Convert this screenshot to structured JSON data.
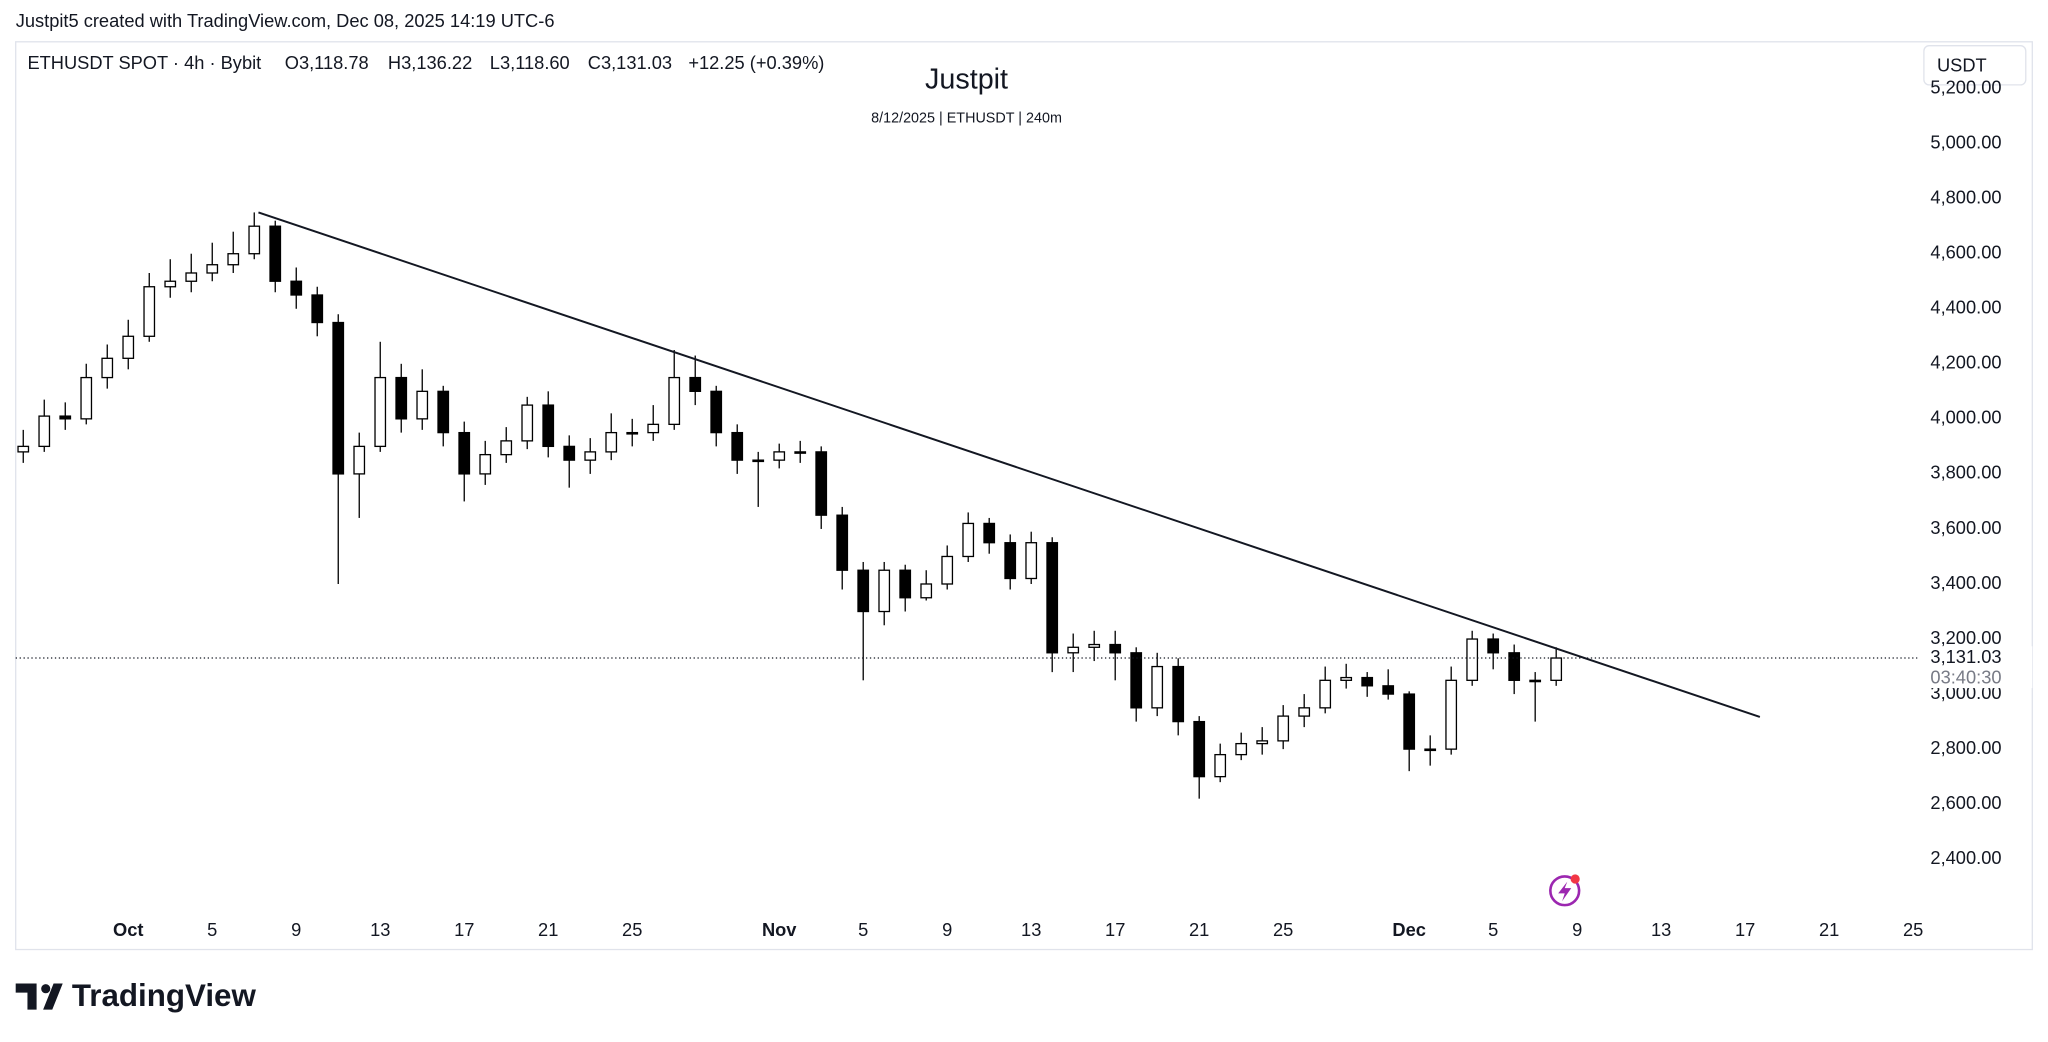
{
  "header": {
    "credit": "Justpit5 created with TradingView.com, Dec 08, 2025 14:19 UTC-6",
    "symbol": "ETHUSDT SPOT · 4h · Bybit",
    "open": "O3,118.78",
    "high": "H3,136.22",
    "low": "L3,118.60",
    "close": "C3,131.03",
    "change": "+12.25 (+0.39%)",
    "currency": "USDT",
    "logo": "TradingView"
  },
  "chart_data": {
    "type": "candlestick",
    "title": "Justpit",
    "subtitle": "8/12/2025 | ETHUSDT | 240m",
    "color": "#000000",
    "x": [
      -5,
      -4,
      -3,
      -2,
      -1,
      0,
      1,
      2,
      3,
      4,
      5,
      6,
      7,
      8,
      9,
      10,
      11,
      12,
      13,
      14,
      15,
      16,
      17,
      18,
      19,
      20,
      21,
      22,
      23,
      24,
      25,
      26,
      27,
      28,
      29,
      30,
      31,
      32,
      33,
      34,
      35,
      36,
      37,
      38,
      39,
      40,
      41,
      42,
      43,
      44,
      45,
      46,
      47,
      48,
      49,
      50,
      51,
      52,
      53,
      54,
      55,
      56,
      57,
      58,
      59,
      60,
      61,
      62,
      63,
      64,
      65,
      66,
      67,
      68
    ],
    "open": [
      3880,
      3900,
      4010,
      4000,
      4150,
      4220,
      4300,
      4480,
      4500,
      4530,
      4560,
      4600,
      4700,
      4500,
      4450,
      4350,
      3800,
      3900,
      4150,
      4000,
      4100,
      3950,
      3800,
      3870,
      3920,
      4050,
      3900,
      3850,
      3880,
      3950,
      3950,
      3980,
      4150,
      4100,
      3950,
      3850,
      3850,
      3880,
      3880,
      3650,
      3450,
      3300,
      3450,
      3350,
      3400,
      3500,
      3620,
      3550,
      3420,
      3550,
      3150,
      3170,
      3180,
      3150,
      2950,
      3100,
      2900,
      2700,
      2780,
      2820,
      2830,
      2920,
      2950,
      3050,
      3060,
      3030,
      3000,
      2800,
      2800,
      3050,
      3200,
      3150,
      3050,
      3050
    ],
    "high": [
      3960,
      4070,
      4060,
      4200,
      4270,
      4360,
      4530,
      4580,
      4600,
      4640,
      4680,
      4750,
      4720,
      4550,
      4480,
      4380,
      3950,
      4280,
      4200,
      4180,
      4120,
      3990,
      3920,
      3970,
      4080,
      4100,
      3940,
      3930,
      4020,
      4000,
      4050,
      4250,
      4230,
      4120,
      3980,
      3880,
      3910,
      3920,
      3900,
      3680,
      3480,
      3480,
      3470,
      3450,
      3540,
      3660,
      3640,
      3580,
      3590,
      3570,
      3220,
      3230,
      3230,
      3170,
      3150,
      3130,
      2920,
      2820,
      2860,
      2880,
      2960,
      3000,
      3100,
      3110,
      3080,
      3090,
      3010,
      2850,
      3100,
      3230,
      3220,
      3180,
      3080,
      3170
    ],
    "low": [
      3840,
      3880,
      3960,
      3980,
      4110,
      4180,
      4280,
      4440,
      4460,
      4500,
      4530,
      4580,
      4460,
      4400,
      4300,
      3400,
      3640,
      3880,
      3950,
      3960,
      3900,
      3700,
      3760,
      3840,
      3890,
      3860,
      3750,
      3800,
      3850,
      3900,
      3920,
      3960,
      4050,
      3900,
      3800,
      3680,
      3820,
      3840,
      3600,
      3380,
      3050,
      3250,
      3300,
      3340,
      3380,
      3480,
      3510,
      3380,
      3400,
      3080,
      3080,
      3120,
      3050,
      2900,
      2920,
      2850,
      2620,
      2680,
      2760,
      2780,
      2800,
      2880,
      2930,
      3020,
      2990,
      2980,
      2720,
      2740,
      2780,
      3030,
      3090,
      3000,
      2900,
      3030
    ],
    "close": [
      3900,
      4010,
      4000,
      4150,
      4220,
      4300,
      4480,
      4500,
      4530,
      4560,
      4600,
      4700,
      4500,
      4450,
      4350,
      3800,
      3900,
      4150,
      4000,
      4100,
      3950,
      3800,
      3870,
      3920,
      4050,
      3900,
      3850,
      3880,
      3950,
      3950,
      3980,
      4150,
      4100,
      3950,
      3850,
      3850,
      3880,
      3880,
      3650,
      3450,
      3300,
      3450,
      3350,
      3400,
      3500,
      3620,
      3550,
      3420,
      3550,
      3150,
      3170,
      3180,
      3150,
      2950,
      3100,
      2900,
      2700,
      2780,
      2820,
      2830,
      2920,
      2950,
      3050,
      3060,
      3030,
      3000,
      2800,
      2800,
      3050,
      3200,
      3150,
      3050,
      3050,
      3131.03
    ],
    "last_price": {
      "value": 3131.03,
      "label": "3,131.03"
    },
    "countdown": "03:40:30",
    "trendline": {
      "x": [
        6.2,
        77.7
      ],
      "y": [
        4750,
        2917
      ]
    },
    "xlim": [
      -5.36,
      85.2
    ],
    "xticks": [
      {
        "value": 0,
        "label": "Oct"
      },
      {
        "value": 4,
        "label": "5"
      },
      {
        "value": 8,
        "label": "9"
      },
      {
        "value": 12,
        "label": "13"
      },
      {
        "value": 16,
        "label": "17"
      },
      {
        "value": 20,
        "label": "21"
      },
      {
        "value": 24,
        "label": "25"
      },
      {
        "value": 31,
        "label": "Nov"
      },
      {
        "value": 35,
        "label": "5"
      },
      {
        "value": 39,
        "label": "9"
      },
      {
        "value": 43,
        "label": "13"
      },
      {
        "value": 47,
        "label": "17"
      },
      {
        "value": 51,
        "label": "21"
      },
      {
        "value": 55,
        "label": "25"
      },
      {
        "value": 61,
        "label": "Dec"
      },
      {
        "value": 65,
        "label": "5"
      },
      {
        "value": 69,
        "label": "9"
      },
      {
        "value": 73,
        "label": "13"
      },
      {
        "value": 77,
        "label": "17"
      },
      {
        "value": 81,
        "label": "21"
      },
      {
        "value": 85,
        "label": "25"
      }
    ],
    "ylim": [
      2200,
      5370
    ],
    "yticks": [
      {
        "value": 2400,
        "label": "2,400.00"
      },
      {
        "value": 2600,
        "label": "2,600.00"
      },
      {
        "value": 2800,
        "label": "2,800.00"
      },
      {
        "value": 3000,
        "label": "3,000.00"
      },
      {
        "value": 3200,
        "label": "3,200.00"
      },
      {
        "value": 3400,
        "label": "3,400.00"
      },
      {
        "value": 3600,
        "label": "3,600.00"
      },
      {
        "value": 3800,
        "label": "3,800.00"
      },
      {
        "value": 4000,
        "label": "4,000.00"
      },
      {
        "value": 4200,
        "label": "4,200.00"
      },
      {
        "value": 4400,
        "label": "4,400.00"
      },
      {
        "value": 4600,
        "label": "4,600.00"
      },
      {
        "value": 4800,
        "label": "4,800.00"
      },
      {
        "value": 5000,
        "label": "5,000.00"
      },
      {
        "value": 5200,
        "label": "5,200.00"
      }
    ],
    "grid": false
  }
}
